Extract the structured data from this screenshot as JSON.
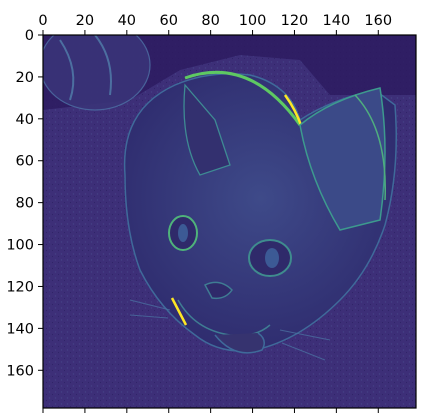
{
  "chart_data": {
    "type": "heatmap",
    "title": "",
    "xlabel": "",
    "ylabel": "",
    "colormap": "viridis",
    "image_width": 178,
    "image_height": 178,
    "xlim": [
      0,
      178
    ],
    "ylim": [
      178,
      0
    ],
    "x_ticks": [
      0,
      20,
      40,
      60,
      80,
      100,
      120,
      140,
      160
    ],
    "y_ticks": [
      0,
      20,
      40,
      60,
      80,
      100,
      120,
      140,
      160
    ],
    "x_tick_position": "top",
    "grid": false,
    "legend": "none",
    "colors": {
      "background": "#443a83",
      "dark": "#2f1d63",
      "mid": "#3b528b",
      "edge_bright": "#5ec962",
      "edge_peak": "#fde725"
    },
    "content": "feature activation map of a cat face"
  }
}
